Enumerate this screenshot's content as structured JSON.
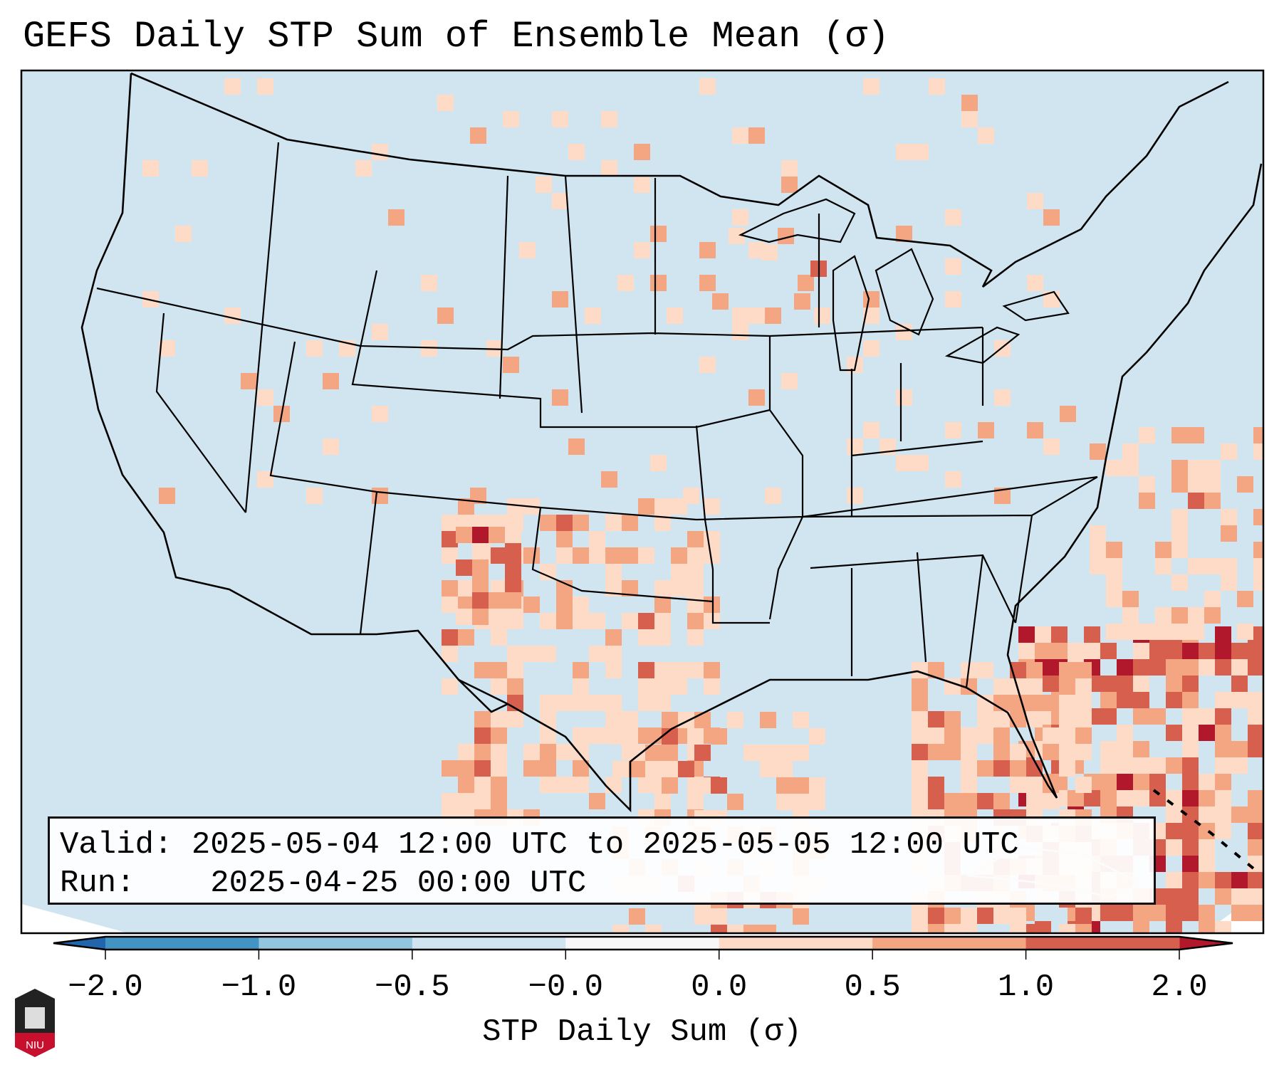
{
  "title": "GEFS Daily STP Sum of Ensemble Mean (σ)",
  "info": {
    "valid_label": "Valid:",
    "valid_value": "2025-05-04 12:00 UTC to 2025-05-05 12:00 UTC",
    "run_label": "Run:",
    "run_value": "2025-04-25 00:00 UTC"
  },
  "colorbar": {
    "label": "STP Daily Sum (σ)",
    "ticks": [
      "−2.0",
      "−1.0",
      "−0.5",
      "−0.0",
      "0.0",
      "0.5",
      "1.0",
      "2.0"
    ],
    "colors": [
      "#4393c3",
      "#92c5de",
      "#d1e5f0",
      "#f7f7f7",
      "#fddbc7",
      "#f4a582",
      "#d6604d"
    ],
    "under_color": "#2166ac",
    "over_color": "#b2182b"
  },
  "logo": {
    "text": "NIU"
  },
  "colors": {
    "ocean_land_background": "#d1e5f0",
    "outline": "#000000"
  }
}
